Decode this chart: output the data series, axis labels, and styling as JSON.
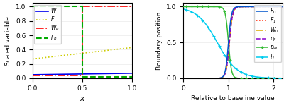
{
  "left_xlabel": "$x$",
  "left_ylabel": "Scaled variable",
  "left_xlim": [
    0,
    1
  ],
  "left_ylim": [
    0,
    1.05
  ],
  "left_xticks": [
    0,
    0.5,
    1
  ],
  "left_yticks": [
    0,
    0.2,
    0.4,
    0.6,
    0.8,
    1.0
  ],
  "right_xlabel": "Relative to baseline value",
  "right_ylabel": "Boundary position",
  "right_xlim": [
    0,
    2.2
  ],
  "right_ylim": [
    0,
    1.05
  ],
  "right_xticks": [
    0,
    1,
    2
  ],
  "right_yticks": [
    0,
    0.5,
    1.0
  ]
}
